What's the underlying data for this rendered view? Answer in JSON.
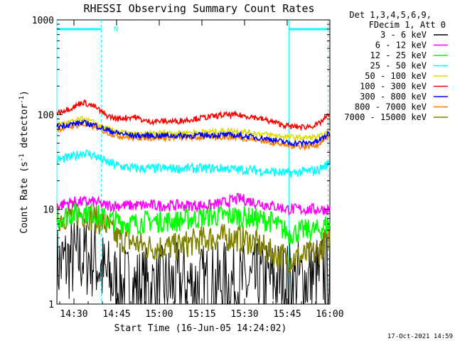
{
  "chart_data": {
    "type": "line",
    "title": "RHESSI Observing Summary Count Rates",
    "xlabel": "Start Time (16-Jun-05 14:24:02)",
    "ylabel": "Count Rate (s",
    "ylabel_sup1": "-1",
    "ylabel_mid": " detector",
    "ylabel_sup2": "-1",
    "ylabel_end": ")",
    "yscale": "log",
    "ylim": [
      1,
      1000
    ],
    "xlim_minutes": [
      14.4,
      16.0
    ],
    "x_ticks": [
      "14:30",
      "14:45",
      "15:00",
      "15:15",
      "15:30",
      "15:45",
      "16:00"
    ],
    "y_ticks": [
      "1",
      "10",
      "100",
      "1000"
    ],
    "legend_header": [
      "Det 1,3,4,5,6,9,",
      "FDecim 1, Att 0"
    ],
    "flag_label": "N",
    "timestamp": "17-Oct-2021 14:59",
    "night_bars": [
      [
        14.4,
        14.66
      ],
      [
        15.76,
        15.99
      ]
    ],
    "vlines": [
      14.4,
      14.66,
      15.76,
      15.99
    ],
    "x_hours": [
      14.4,
      14.5,
      14.55,
      14.62,
      14.68,
      14.75,
      14.85,
      14.92,
      15.0,
      15.1,
      15.2,
      15.3,
      15.4,
      15.47,
      15.55,
      15.65,
      15.76,
      15.85,
      15.93,
      15.99
    ],
    "series": [
      {
        "name": "3 - 6 keV",
        "color": "#000000",
        "values": [
          2.5,
          3.0,
          3.2,
          3.0,
          2.0,
          1.6,
          1.5,
          1.5,
          1.5,
          1.6,
          1.6,
          1.6,
          1.7,
          1.6,
          1.6,
          1.8,
          1.8,
          1.8,
          2.0,
          2.2
        ]
      },
      {
        "name": "6 - 12 keV",
        "color": "#ff00ff",
        "values": [
          11,
          12,
          12,
          12,
          11,
          11,
          11,
          11,
          11,
          11,
          11,
          11,
          12,
          13,
          12,
          11,
          10,
          10,
          10,
          10
        ]
      },
      {
        "name": "12 - 25 keV",
        "color": "#00ff00",
        "values": [
          8,
          9,
          9.5,
          9,
          8,
          7.5,
          7,
          7.5,
          7.5,
          7.5,
          8,
          8.5,
          8.5,
          8.5,
          8,
          7.5,
          5.5,
          6,
          6,
          7
        ]
      },
      {
        "name": "25 - 50 keV",
        "color": "#00ffff",
        "values": [
          33,
          36,
          40,
          37,
          32,
          29,
          27,
          27,
          27,
          27,
          27,
          27,
          27,
          26,
          26,
          25,
          24,
          25,
          26,
          30
        ]
      },
      {
        "name": "50 - 100 keV",
        "color": "#dddd00",
        "values": [
          78,
          85,
          90,
          82,
          72,
          66,
          62,
          62,
          64,
          64,
          65,
          66,
          68,
          67,
          64,
          61,
          58,
          57,
          58,
          64
        ]
      },
      {
        "name": "100 - 300 keV",
        "color": "#ff0000",
        "values": [
          105,
          120,
          135,
          122,
          100,
          90,
          95,
          85,
          85,
          85,
          90,
          95,
          100,
          98,
          95,
          85,
          75,
          74,
          78,
          98
        ]
      },
      {
        "name": "300 - 800 keV",
        "color": "#0000ff",
        "values": [
          75,
          80,
          82,
          78,
          70,
          64,
          60,
          60,
          60,
          60,
          60,
          61,
          61,
          60,
          58,
          55,
          50,
          50,
          52,
          62
        ]
      },
      {
        "name": "800 - 7000 keV",
        "color": "#ff8000",
        "values": [
          70,
          76,
          79,
          74,
          66,
          60,
          57,
          57,
          57,
          57,
          57,
          58,
          58,
          57,
          55,
          51,
          47,
          46,
          48,
          58
        ]
      },
      {
        "name": "7000 - 15000 keV",
        "color": "#808000",
        "values": [
          8,
          9,
          9,
          8,
          7,
          5,
          4.5,
          4,
          4,
          4,
          4.5,
          5,
          5,
          5,
          4.5,
          3.5,
          3,
          3.2,
          3.5,
          5
        ]
      }
    ]
  }
}
